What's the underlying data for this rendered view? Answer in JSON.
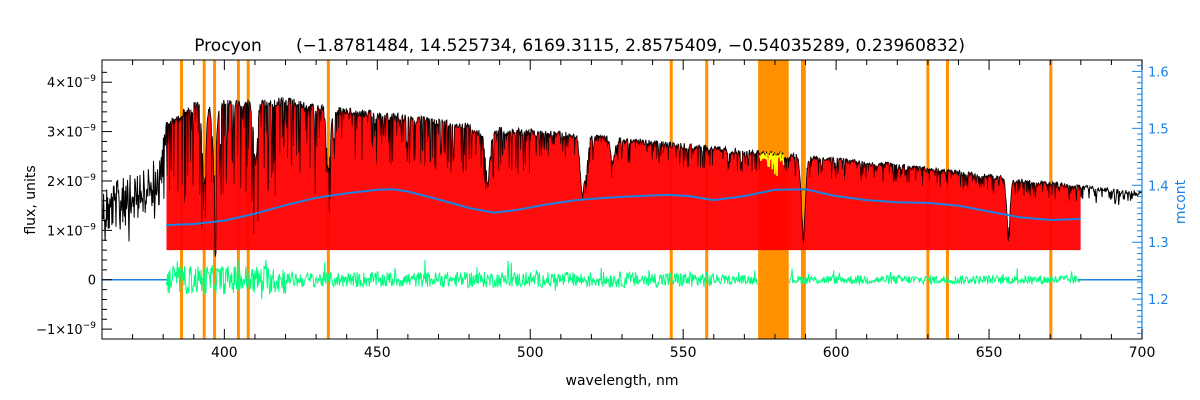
{
  "chart_data": {
    "type": "line",
    "title": "Procyon",
    "title_params": "(−1.8781484, 14.525734, 6169.3115, 2.8575409, −0.54035289, 0.23960832)",
    "xlabel": "wavelength, nm",
    "ylabel_left": "flux, units",
    "ylabel_right": "mcont",
    "xlim": [
      360,
      700
    ],
    "ylim_left": [
      -1.2e-09,
      4.45e-09
    ],
    "ylim_right": [
      1.13,
      1.62
    ],
    "x_ticks": [
      {
        "v": 400,
        "label": "400"
      },
      {
        "v": 450,
        "label": "450"
      },
      {
        "v": 500,
        "label": "500"
      },
      {
        "v": 550,
        "label": "550"
      },
      {
        "v": 600,
        "label": "600"
      },
      {
        "v": 650,
        "label": "650"
      },
      {
        "v": 700,
        "label": "700"
      }
    ],
    "y_ticks_left": [
      {
        "v": -1e-09,
        "base": "−1×10",
        "exp": "−9"
      },
      {
        "v": 0,
        "base": "0",
        "exp": ""
      },
      {
        "v": 1e-09,
        "base": "1×10",
        "exp": "−9"
      },
      {
        "v": 2e-09,
        "base": "2×10",
        "exp": "−9"
      },
      {
        "v": 3e-09,
        "base": "3×10",
        "exp": "−9"
      },
      {
        "v": 4e-09,
        "base": "4×10",
        "exp": "−9"
      }
    ],
    "y_ticks_right": [
      {
        "v": 1.2,
        "label": "1.2"
      },
      {
        "v": 1.3,
        "label": "1.3"
      },
      {
        "v": 1.4,
        "label": "1.4"
      },
      {
        "v": 1.5,
        "label": "1.5"
      },
      {
        "v": 1.6,
        "label": "1.6"
      }
    ],
    "masked_lines_nm": [
      386.0,
      393.4,
      396.8,
      404.6,
      407.8,
      434.0,
      546.1,
      557.7,
      589.0,
      589.6,
      630.0,
      636.4,
      670.2
    ],
    "masked_band_nm": [
      574.5,
      584.5
    ],
    "continuum_points": [
      [
        381,
        1.33
      ],
      [
        390,
        1.332
      ],
      [
        400,
        1.338
      ],
      [
        410,
        1.35
      ],
      [
        420,
        1.365
      ],
      [
        430,
        1.378
      ],
      [
        440,
        1.386
      ],
      [
        450,
        1.392
      ],
      [
        455,
        1.393
      ],
      [
        460,
        1.389
      ],
      [
        470,
        1.375
      ],
      [
        480,
        1.36
      ],
      [
        488,
        1.352
      ],
      [
        495,
        1.356
      ],
      [
        505,
        1.366
      ],
      [
        515,
        1.374
      ],
      [
        525,
        1.378
      ],
      [
        535,
        1.381
      ],
      [
        545,
        1.383
      ],
      [
        552,
        1.381
      ],
      [
        560,
        1.374
      ],
      [
        570,
        1.381
      ],
      [
        580,
        1.392
      ],
      [
        590,
        1.393
      ],
      [
        600,
        1.381
      ],
      [
        610,
        1.374
      ],
      [
        620,
        1.37
      ],
      [
        630,
        1.369
      ],
      [
        640,
        1.364
      ],
      [
        650,
        1.354
      ],
      [
        660,
        1.344
      ],
      [
        670,
        1.339
      ],
      [
        680,
        1.341
      ]
    ],
    "flux_envelope": [
      [
        360,
        1.9e-09
      ],
      [
        370,
        2.15e-09
      ],
      [
        378,
        2.5e-09
      ],
      [
        381,
        3.2e-09
      ],
      [
        390,
        3.6e-09
      ],
      [
        400,
        3.65e-09
      ],
      [
        410,
        3.65e-09
      ],
      [
        420,
        3.7e-09
      ],
      [
        430,
        3.58e-09
      ],
      [
        440,
        3.48e-09
      ],
      [
        450,
        3.42e-09
      ],
      [
        460,
        3.35e-09
      ],
      [
        470,
        3.27e-09
      ],
      [
        480,
        3.18e-09
      ],
      [
        486,
        2.9e-09
      ],
      [
        490,
        3.1e-09
      ],
      [
        500,
        3.06e-09
      ],
      [
        520,
        2.95e-09
      ],
      [
        540,
        2.83e-09
      ],
      [
        560,
        2.72e-09
      ],
      [
        580,
        2.59e-09
      ],
      [
        600,
        2.48e-09
      ],
      [
        620,
        2.36e-09
      ],
      [
        640,
        2.22e-09
      ],
      [
        656,
        2.1e-09
      ],
      [
        660,
        2.05e-09
      ],
      [
        680,
        1.92e-09
      ],
      [
        700,
        1.78e-09
      ]
    ],
    "deep_lines": [
      {
        "nm": 393.4,
        "depth": 1.6e-09
      },
      {
        "nm": 396.8,
        "depth": 1.5e-09
      },
      {
        "nm": 410.2,
        "depth": 1.2e-09
      },
      {
        "nm": 434.0,
        "depth": 1.3e-09
      },
      {
        "nm": 486.1,
        "depth": 9e-10
      },
      {
        "nm": 516.7,
        "depth": 7e-10
      },
      {
        "nm": 517.3,
        "depth": 6e-10
      },
      {
        "nm": 518.4,
        "depth": 6e-10
      },
      {
        "nm": 527.0,
        "depth": 5e-10
      },
      {
        "nm": 589.0,
        "depth": 9e-10
      },
      {
        "nm": 589.6,
        "depth": 8e-10
      },
      {
        "nm": 656.3,
        "depth": 1.05e-09
      }
    ],
    "series": [
      {
        "name": "observed flux",
        "color": "#000000",
        "range_nm": [
          360,
          700
        ]
      },
      {
        "name": "model flux",
        "color": "#ff0000",
        "range_nm": [
          381,
          680
        ]
      },
      {
        "name": "residuals",
        "color": "#00ff7f",
        "range_nm": [
          381,
          680
        ]
      },
      {
        "name": "continuum (mcont)",
        "color": "#1a82e2",
        "range_nm": [
          381,
          680
        ]
      },
      {
        "name": "masked regions",
        "color": "#ff9000"
      },
      {
        "name": "fit segment",
        "color": "#ffff00",
        "range_nm": [
          575,
          583
        ]
      }
    ],
    "colors": {
      "axis_left": "#000000",
      "axis_right": "#1a82e2",
      "zero_line": "#1a82e2",
      "mask": "#ff9000"
    }
  }
}
